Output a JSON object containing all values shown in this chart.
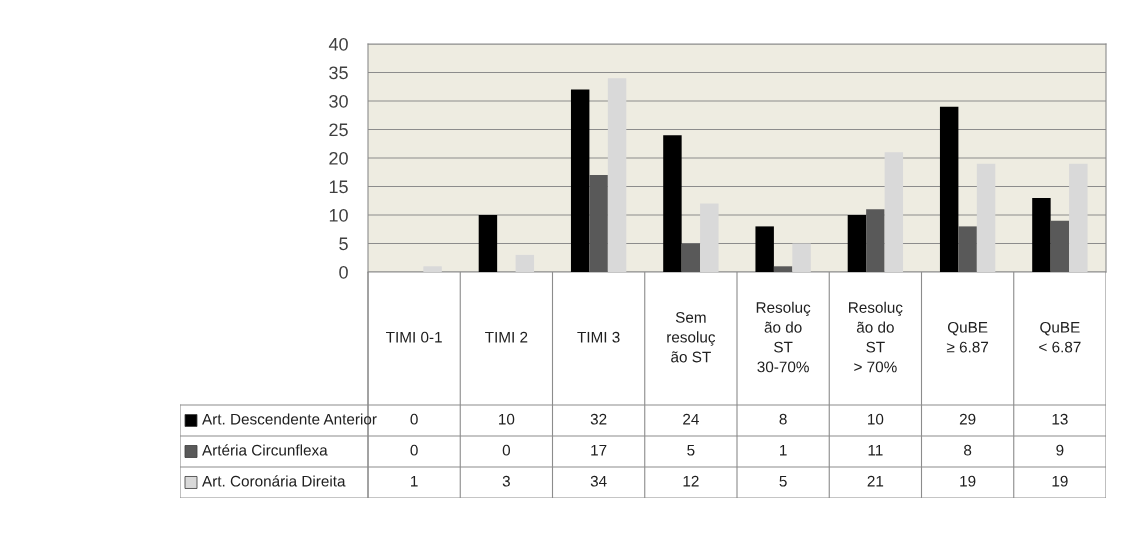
{
  "chart_data": {
    "type": "bar",
    "categories": [
      "TIMI 0-1",
      "TIMI 2",
      "TIMI 3",
      "Sem\nresoluç\não ST",
      "Resoluç\não do\nST\n30-70%",
      "Resoluç\não do\nST\n> 70%",
      "QuBE\n≥ 6.87",
      "QuBE\n< 6.87"
    ],
    "series": [
      {
        "name": "Art. Descendente Anterior",
        "color": "#000000",
        "values": [
          0,
          10,
          32,
          24,
          8,
          10,
          29,
          13
        ]
      },
      {
        "name": "Artéria Circunflexa",
        "color": "#595959",
        "values": [
          0,
          0,
          17,
          5,
          1,
          11,
          8,
          9
        ]
      },
      {
        "name": "Art. Coronária Direita",
        "color": "#d9d9d9",
        "values": [
          1,
          3,
          34,
          12,
          5,
          21,
          19,
          19
        ]
      }
    ],
    "ylim": [
      0,
      40
    ],
    "yticks": [
      0,
      5,
      10,
      15,
      20,
      25,
      30,
      35,
      40
    ],
    "grid": "y",
    "legend": "bottom",
    "data_labels": true
  }
}
